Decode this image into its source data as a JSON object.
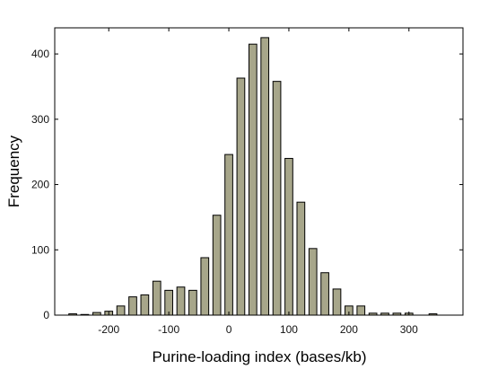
{
  "chart_data": {
    "type": "bar",
    "title": "",
    "xlabel": "Purine-loading index (bases/kb)",
    "ylabel": "Frequency",
    "xlim": [
      -290,
      390
    ],
    "ylim": [
      0,
      440
    ],
    "xticks": [
      -200,
      -100,
      0,
      100,
      200,
      300
    ],
    "yticks": [
      0,
      100,
      200,
      300,
      400
    ],
    "grid": false,
    "legend": "none",
    "bar_color": "#a7a68a",
    "bar_edge_color": "#000000",
    "x": [
      -260,
      -240,
      -220,
      -200,
      -180,
      -160,
      -140,
      -120,
      -100,
      -80,
      -60,
      -40,
      -20,
      0,
      20,
      40,
      60,
      80,
      100,
      120,
      140,
      160,
      180,
      200,
      220,
      240,
      260,
      280,
      300,
      340
    ],
    "values": [
      2,
      1,
      4,
      6,
      14,
      28,
      31,
      52,
      38,
      43,
      38,
      88,
      153,
      246,
      363,
      415,
      425,
      358,
      240,
      173,
      102,
      65,
      40,
      14,
      14,
      3,
      3,
      3,
      3,
      2
    ]
  }
}
